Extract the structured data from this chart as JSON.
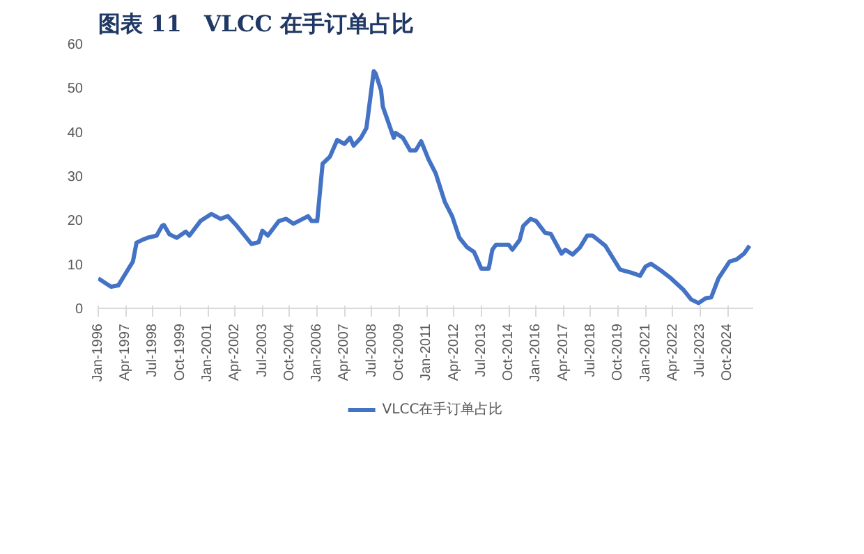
{
  "chart_data": {
    "type": "line",
    "title": "图表 11　VLCC 在手订单占比",
    "legend": "bottom",
    "grid": false,
    "ylim": [
      0,
      60
    ],
    "yticks": [
      0,
      10,
      20,
      30,
      40,
      50,
      60
    ],
    "xlim": [
      "1996-01",
      "2025-12"
    ],
    "xticks": [
      {
        "value": "1996-01",
        "label": "Jan-1996"
      },
      {
        "value": "1997-04",
        "label": "Apr-1997"
      },
      {
        "value": "1998-07",
        "label": "Jul-1998"
      },
      {
        "value": "1999-10",
        "label": "Oct-1999"
      },
      {
        "value": "2001-01",
        "label": "Jan-2001"
      },
      {
        "value": "2002-04",
        "label": "Apr-2002"
      },
      {
        "value": "2003-07",
        "label": "Jul-2003"
      },
      {
        "value": "2004-10",
        "label": "Oct-2004"
      },
      {
        "value": "2006-01",
        "label": "Jan-2006"
      },
      {
        "value": "2007-04",
        "label": "Apr-2007"
      },
      {
        "value": "2008-07",
        "label": "Jul-2008"
      },
      {
        "value": "2009-10",
        "label": "Oct-2009"
      },
      {
        "value": "2011-01",
        "label": "Jan-2011"
      },
      {
        "value": "2012-04",
        "label": "Apr-2012"
      },
      {
        "value": "2013-07",
        "label": "Jul-2013"
      },
      {
        "value": "2014-10",
        "label": "Oct-2014"
      },
      {
        "value": "2016-01",
        "label": "Jan-2016"
      },
      {
        "value": "2017-04",
        "label": "Apr-2017"
      },
      {
        "value": "2018-07",
        "label": "Jul-2018"
      },
      {
        "value": "2019-10",
        "label": "Oct-2019"
      },
      {
        "value": "2021-01",
        "label": "Jan-2021"
      },
      {
        "value": "2022-04",
        "label": "Apr-2022"
      },
      {
        "value": "2023-07",
        "label": "Jul-2023"
      },
      {
        "value": "2024-10",
        "label": "Oct-2024"
      }
    ],
    "x": [
      "1996-01",
      "1996-08",
      "1996-12",
      "1997-04",
      "1997-08",
      "1997-10",
      "1998-01",
      "1998-04",
      "1998-09",
      "1998-12",
      "1999-01",
      "1999-04",
      "1999-08",
      "2000-01",
      "2000-03",
      "2000-09",
      "2001-03",
      "2001-08",
      "2001-12",
      "2002-05",
      "2003-01",
      "2003-05",
      "2003-07",
      "2003-10",
      "2004-04",
      "2004-08",
      "2004-12",
      "2005-08",
      "2005-10",
      "2006-01",
      "2006-04",
      "2006-08",
      "2006-12",
      "2007-04",
      "2007-07",
      "2007-09",
      "2008-01",
      "2008-04",
      "2008-08",
      "2008-09",
      "2008-12",
      "2009-01",
      "2009-07",
      "2009-08",
      "2009-12",
      "2010-04",
      "2010-07",
      "2010-10",
      "2011-02",
      "2011-06",
      "2011-11",
      "2012-03",
      "2012-07",
      "2012-11",
      "2013-03",
      "2013-07",
      "2013-11",
      "2014-01",
      "2014-03",
      "2014-10",
      "2014-12",
      "2015-04",
      "2015-06",
      "2015-10",
      "2016-01",
      "2016-06",
      "2016-09",
      "2017-03",
      "2017-05",
      "2017-09",
      "2018-01",
      "2018-05",
      "2018-08",
      "2019-03",
      "2019-11",
      "2020-05",
      "2020-10",
      "2021-01",
      "2021-04",
      "2021-10",
      "2022-03",
      "2022-10",
      "2023-02",
      "2023-06",
      "2023-10",
      "2024-01",
      "2024-05",
      "2024-11",
      "2025-03",
      "2025-07",
      "2025-10"
    ],
    "series": [
      {
        "name": "VLCC在手订单占比",
        "color": "#4472c4",
        "values": [
          6.8,
          4.9,
          5.2,
          7.9,
          10.6,
          14.9,
          15.5,
          16,
          16.5,
          18.7,
          18.9,
          16.8,
          16,
          17.4,
          16.5,
          19.8,
          21.4,
          20.3,
          20.9,
          18.7,
          14.6,
          15,
          17.6,
          16.5,
          19.8,
          20.3,
          19.2,
          20.9,
          19.8,
          19.8,
          32.8,
          34.4,
          38.2,
          37.3,
          38.7,
          36.9,
          38.7,
          40.9,
          53.8,
          53.3,
          49.5,
          45.7,
          38.7,
          39.8,
          38.7,
          35.8,
          35.8,
          37.9,
          33.8,
          30.6,
          24.1,
          20.9,
          16,
          13.9,
          12.8,
          9,
          9,
          13.3,
          14.4,
          14.4,
          13.3,
          15.5,
          18.7,
          20.3,
          19.8,
          17.1,
          16.9,
          12.4,
          13.3,
          12.2,
          13.8,
          16.5,
          16.5,
          14.2,
          8.8,
          8.1,
          7.4,
          9.5,
          10.1,
          8.4,
          6.8,
          4.1,
          2,
          1.2,
          2.3,
          2.5,
          6.8,
          10.6,
          11.1,
          12.4,
          14.2
        ]
      }
    ]
  }
}
